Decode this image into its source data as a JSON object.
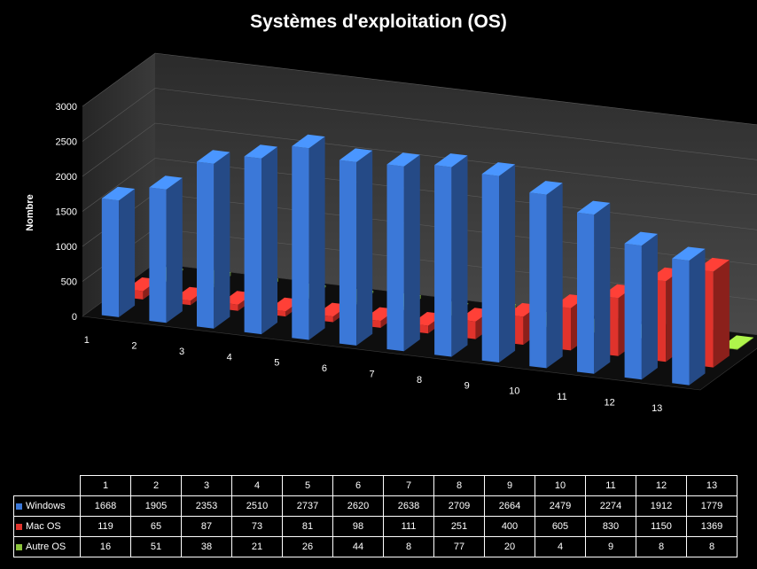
{
  "chart_data": {
    "type": "bar",
    "title": "Systèmes d'exploitation (OS)",
    "xlabel": "",
    "ylabel": "Nombre",
    "ylim": [
      0,
      3000
    ],
    "yticks": [
      0,
      500,
      1000,
      1500,
      2000,
      2500,
      3000
    ],
    "categories": [
      "1",
      "2",
      "3",
      "4",
      "5",
      "6",
      "7",
      "8",
      "9",
      "10",
      "11",
      "12",
      "13"
    ],
    "three_d": true,
    "grid": false,
    "legend": "data-table",
    "series": [
      {
        "name": "Windows",
        "color": "#3b78d8",
        "values": [
          1668,
          1905,
          2353,
          2510,
          2737,
          2620,
          2638,
          2709,
          2664,
          2479,
          2274,
          1912,
          1779
        ]
      },
      {
        "name": "Mac OS",
        "color": "#e0332c",
        "values": [
          119,
          65,
          87,
          73,
          81,
          98,
          111,
          251,
          400,
          605,
          830,
          1150,
          1369
        ]
      },
      {
        "name": "Autre OS",
        "color": "#8cc43c",
        "values": [
          16,
          51,
          38,
          21,
          26,
          44,
          8,
          77,
          20,
          4,
          9,
          8,
          8
        ]
      }
    ]
  }
}
